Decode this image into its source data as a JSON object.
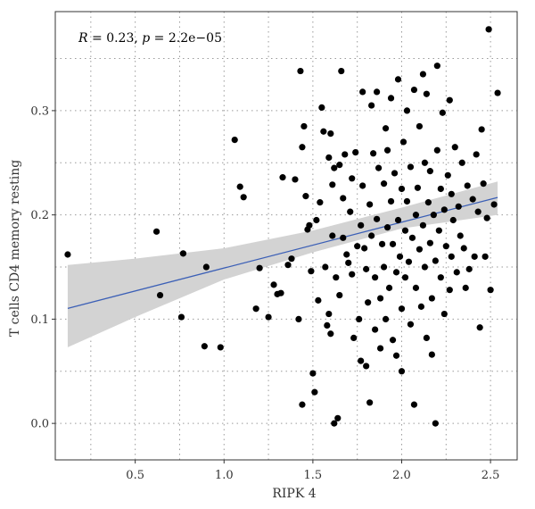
{
  "chart_data": {
    "type": "scatter",
    "title": "",
    "xlabel": "RIPK 4",
    "ylabel": "T cells CD4 memory resting",
    "annotation": {
      "r_label": "R",
      "r_value": "0.23",
      "p_label": "p",
      "p_value": "2.2e−05"
    },
    "xlim": [
      0.05,
      2.65
    ],
    "ylim": [
      -0.035,
      0.395
    ],
    "xticks": [
      0.5,
      1.0,
      1.5,
      2.0,
      2.5
    ],
    "xtick_labels": [
      "0.5",
      "1.0",
      "1.5",
      "2.0",
      "2.5"
    ],
    "yticks": [
      0.0,
      0.1,
      0.2,
      0.3
    ],
    "ytick_labels": [
      "0.0",
      "0.1",
      "0.2",
      "0.3"
    ],
    "grid": true,
    "grid_style": "dotted",
    "point_color": "#000000",
    "line_color": "#3b5fb6",
    "band_color": "#d3d3d3",
    "regression": {
      "intercept": 0.105,
      "slope": 0.044,
      "x_range": [
        0.12,
        2.54
      ]
    },
    "confidence_band": [
      {
        "x": 0.12,
        "lower": 0.073,
        "upper": 0.152
      },
      {
        "x": 0.5,
        "lower": 0.102,
        "upper": 0.158
      },
      {
        "x": 1.0,
        "lower": 0.138,
        "upper": 0.168
      },
      {
        "x": 1.5,
        "lower": 0.164,
        "upper": 0.185
      },
      {
        "x": 2.0,
        "lower": 0.187,
        "upper": 0.207
      },
      {
        "x": 2.54,
        "lower": 0.2,
        "upper": 0.232
      }
    ],
    "points": [
      [
        0.12,
        0.162
      ],
      [
        0.62,
        0.184
      ],
      [
        0.64,
        0.123
      ],
      [
        0.76,
        0.102
      ],
      [
        0.77,
        0.163
      ],
      [
        0.89,
        0.074
      ],
      [
        0.9,
        0.15
      ],
      [
        0.98,
        0.073
      ],
      [
        1.06,
        0.272
      ],
      [
        1.09,
        0.227
      ],
      [
        1.11,
        0.217
      ],
      [
        1.18,
        0.11
      ],
      [
        1.2,
        0.149
      ],
      [
        1.25,
        0.102
      ],
      [
        1.28,
        0.133
      ],
      [
        1.3,
        0.124
      ],
      [
        1.32,
        0.125
      ],
      [
        1.33,
        0.236
      ],
      [
        1.36,
        0.152
      ],
      [
        1.38,
        0.158
      ],
      [
        1.4,
        0.234
      ],
      [
        1.42,
        0.1
      ],
      [
        1.43,
        0.338
      ],
      [
        1.44,
        0.265
      ],
      [
        1.44,
        0.018
      ],
      [
        1.45,
        0.285
      ],
      [
        1.46,
        0.218
      ],
      [
        1.47,
        0.186
      ],
      [
        1.48,
        0.19
      ],
      [
        1.49,
        0.146
      ],
      [
        1.5,
        0.048
      ],
      [
        1.51,
        0.03
      ],
      [
        1.52,
        0.195
      ],
      [
        1.53,
        0.118
      ],
      [
        1.54,
        0.212
      ],
      [
        1.55,
        0.303
      ],
      [
        1.56,
        0.28
      ],
      [
        1.57,
        0.15
      ],
      [
        1.58,
        0.094
      ],
      [
        1.59,
        0.255
      ],
      [
        1.59,
        0.105
      ],
      [
        1.6,
        0.278
      ],
      [
        1.6,
        0.086
      ],
      [
        1.61,
        0.18
      ],
      [
        1.61,
        0.229
      ],
      [
        1.62,
        0.245
      ],
      [
        1.62,
        0.0
      ],
      [
        1.63,
        0.14
      ],
      [
        1.64,
        0.005
      ],
      [
        1.65,
        0.248
      ],
      [
        1.65,
        0.123
      ],
      [
        1.66,
        0.338
      ],
      [
        1.67,
        0.178
      ],
      [
        1.67,
        0.216
      ],
      [
        1.68,
        0.258
      ],
      [
        1.69,
        0.162
      ],
      [
        1.7,
        0.154
      ],
      [
        1.71,
        0.203
      ],
      [
        1.72,
        0.235
      ],
      [
        1.72,
        0.143
      ],
      [
        1.73,
        0.082
      ],
      [
        1.74,
        0.26
      ],
      [
        1.75,
        0.17
      ],
      [
        1.76,
        0.1
      ],
      [
        1.77,
        0.19
      ],
      [
        1.77,
        0.06
      ],
      [
        1.78,
        0.318
      ],
      [
        1.78,
        0.228
      ],
      [
        1.79,
        0.168
      ],
      [
        1.8,
        0.148
      ],
      [
        1.8,
        0.055
      ],
      [
        1.81,
        0.116
      ],
      [
        1.82,
        0.02
      ],
      [
        1.82,
        0.21
      ],
      [
        1.83,
        0.305
      ],
      [
        1.83,
        0.18
      ],
      [
        1.84,
        0.259
      ],
      [
        1.85,
        0.14
      ],
      [
        1.85,
        0.09
      ],
      [
        1.86,
        0.318
      ],
      [
        1.86,
        0.196
      ],
      [
        1.87,
        0.245
      ],
      [
        1.88,
        0.12
      ],
      [
        1.88,
        0.072
      ],
      [
        1.89,
        0.172
      ],
      [
        1.9,
        0.23
      ],
      [
        1.9,
        0.15
      ],
      [
        1.91,
        0.283
      ],
      [
        1.91,
        0.1
      ],
      [
        1.92,
        0.188
      ],
      [
        1.92,
        0.262
      ],
      [
        1.93,
        0.13
      ],
      [
        1.94,
        0.213
      ],
      [
        1.94,
        0.312
      ],
      [
        1.95,
        0.172
      ],
      [
        1.95,
        0.08
      ],
      [
        1.96,
        0.24
      ],
      [
        1.97,
        0.145
      ],
      [
        1.97,
        0.065
      ],
      [
        1.98,
        0.195
      ],
      [
        1.98,
        0.33
      ],
      [
        1.99,
        0.16
      ],
      [
        2.0,
        0.225
      ],
      [
        2.0,
        0.05
      ],
      [
        2.0,
        0.11
      ],
      [
        2.01,
        0.27
      ],
      [
        2.02,
        0.185
      ],
      [
        2.02,
        0.14
      ],
      [
        2.03,
        0.213
      ],
      [
        2.03,
        0.3
      ],
      [
        2.04,
        0.155
      ],
      [
        2.05,
        0.246
      ],
      [
        2.05,
        0.095
      ],
      [
        2.06,
        0.178
      ],
      [
        2.07,
        0.018
      ],
      [
        2.07,
        0.32
      ],
      [
        2.08,
        0.2
      ],
      [
        2.08,
        0.13
      ],
      [
        2.09,
        0.226
      ],
      [
        2.1,
        0.167
      ],
      [
        2.1,
        0.285
      ],
      [
        2.11,
        0.112
      ],
      [
        2.12,
        0.19
      ],
      [
        2.12,
        0.335
      ],
      [
        2.13,
        0.25
      ],
      [
        2.13,
        0.15
      ],
      [
        2.14,
        0.082
      ],
      [
        2.14,
        0.316
      ],
      [
        2.15,
        0.212
      ],
      [
        2.16,
        0.173
      ],
      [
        2.16,
        0.242
      ],
      [
        2.17,
        0.12
      ],
      [
        2.17,
        0.066
      ],
      [
        2.18,
        0.2
      ],
      [
        2.19,
        0.0
      ],
      [
        2.19,
        0.156
      ],
      [
        2.2,
        0.262
      ],
      [
        2.2,
        0.343
      ],
      [
        2.21,
        0.185
      ],
      [
        2.22,
        0.225
      ],
      [
        2.22,
        0.14
      ],
      [
        2.23,
        0.298
      ],
      [
        2.24,
        0.205
      ],
      [
        2.24,
        0.105
      ],
      [
        2.25,
        0.17
      ],
      [
        2.26,
        0.238
      ],
      [
        2.27,
        0.31
      ],
      [
        2.27,
        0.128
      ],
      [
        2.28,
        0.22
      ],
      [
        2.28,
        0.16
      ],
      [
        2.29,
        0.195
      ],
      [
        2.3,
        0.265
      ],
      [
        2.31,
        0.145
      ],
      [
        2.32,
        0.208
      ],
      [
        2.33,
        0.18
      ],
      [
        2.34,
        0.25
      ],
      [
        2.35,
        0.168
      ],
      [
        2.36,
        0.13
      ],
      [
        2.37,
        0.228
      ],
      [
        2.38,
        0.148
      ],
      [
        2.4,
        0.215
      ],
      [
        2.41,
        0.16
      ],
      [
        2.42,
        0.258
      ],
      [
        2.43,
        0.203
      ],
      [
        2.44,
        0.092
      ],
      [
        2.45,
        0.282
      ],
      [
        2.46,
        0.23
      ],
      [
        2.47,
        0.16
      ],
      [
        2.48,
        0.197
      ],
      [
        2.49,
        0.378
      ],
      [
        2.5,
        0.128
      ],
      [
        2.52,
        0.21
      ],
      [
        2.54,
        0.317
      ]
    ]
  }
}
